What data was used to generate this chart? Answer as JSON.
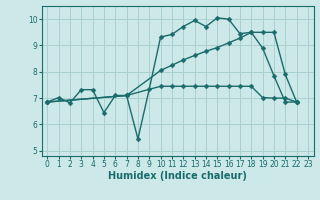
{
  "bg_color": "#cce8e8",
  "grid_color": "#aad0d0",
  "line_color": "#1a6b6b",
  "line_width": 1.0,
  "marker": "D",
  "marker_size": 2.5,
  "xlabel": "Humidex (Indice chaleur)",
  "xlabel_fontsize": 7,
  "xlim": [
    -0.5,
    23.5
  ],
  "ylim": [
    4.8,
    10.5
  ],
  "yticks": [
    5,
    6,
    7,
    8,
    9,
    10
  ],
  "xticks": [
    0,
    1,
    2,
    3,
    4,
    5,
    6,
    7,
    8,
    9,
    10,
    11,
    12,
    13,
    14,
    15,
    16,
    17,
    18,
    19,
    20,
    21,
    22,
    23
  ],
  "tick_fontsize": 5.5,
  "line1_x": [
    0,
    1,
    2,
    3,
    4,
    5,
    6,
    7,
    8,
    9,
    10,
    11,
    12,
    13,
    14,
    15,
    16,
    17,
    18,
    19,
    20,
    21,
    22
  ],
  "line1_y": [
    6.85,
    7.02,
    6.82,
    7.32,
    7.32,
    6.45,
    7.1,
    7.1,
    5.45,
    7.35,
    9.32,
    9.42,
    9.72,
    9.95,
    9.72,
    10.05,
    10.0,
    9.45,
    9.5,
    8.9,
    7.85,
    6.85,
    6.85
  ],
  "line2_x": [
    0,
    7,
    10,
    11,
    12,
    13,
    14,
    15,
    16,
    17,
    18,
    19,
    20,
    21,
    22
  ],
  "line2_y": [
    6.85,
    7.1,
    8.05,
    8.25,
    8.45,
    8.62,
    8.78,
    8.92,
    9.1,
    9.28,
    9.5,
    9.5,
    9.5,
    7.9,
    6.85
  ],
  "line3_x": [
    0,
    7,
    10,
    11,
    12,
    13,
    14,
    15,
    16,
    17,
    18,
    19,
    20,
    21,
    22
  ],
  "line3_y": [
    6.85,
    7.1,
    7.45,
    7.45,
    7.45,
    7.45,
    7.45,
    7.45,
    7.45,
    7.45,
    7.45,
    7.02,
    7.0,
    7.0,
    6.85
  ]
}
